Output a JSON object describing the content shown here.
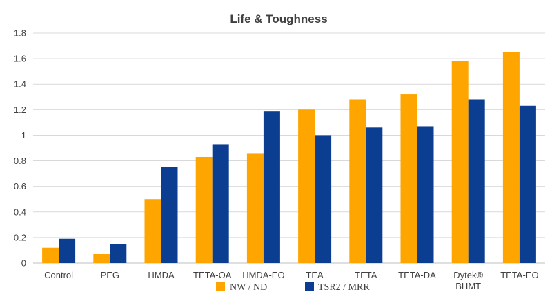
{
  "chart_data": {
    "type": "bar",
    "title": "Life & Toughness",
    "categories": [
      "Control",
      "PEG",
      "HMDA",
      "TETA-OA",
      "HMDA-EO",
      "TEA",
      "TETA",
      "TETA-DA",
      "Dytek® BHMT",
      "TETA-EO"
    ],
    "category_lines": [
      [
        "Control"
      ],
      [
        "PEG"
      ],
      [
        "HMDA"
      ],
      [
        "TETA-OA"
      ],
      [
        "HMDA-EO"
      ],
      [
        "TEA"
      ],
      [
        "TETA"
      ],
      [
        "TETA-DA"
      ],
      [
        "Dytek®",
        "BHMT"
      ],
      [
        "TETA-EO"
      ]
    ],
    "series": [
      {
        "name": "NW / ND",
        "color": "#FFA500",
        "values": [
          0.12,
          0.07,
          0.5,
          0.83,
          0.86,
          1.2,
          1.28,
          1.32,
          1.58,
          1.65
        ]
      },
      {
        "name": "TSR2 / MRR",
        "color": "#0B3D91",
        "values": [
          0.19,
          0.15,
          0.75,
          0.93,
          1.19,
          1.0,
          1.06,
          1.07,
          1.28,
          1.23
        ]
      }
    ],
    "ylim": [
      0,
      1.8
    ],
    "yticks": [
      "0",
      "0.2",
      "0.4",
      "0.6",
      "0.8",
      "1",
      "1.2",
      "1.4",
      "1.6",
      "1.8"
    ],
    "xlabel": "",
    "ylabel": "",
    "grid": true,
    "legend_position": "bottom"
  }
}
